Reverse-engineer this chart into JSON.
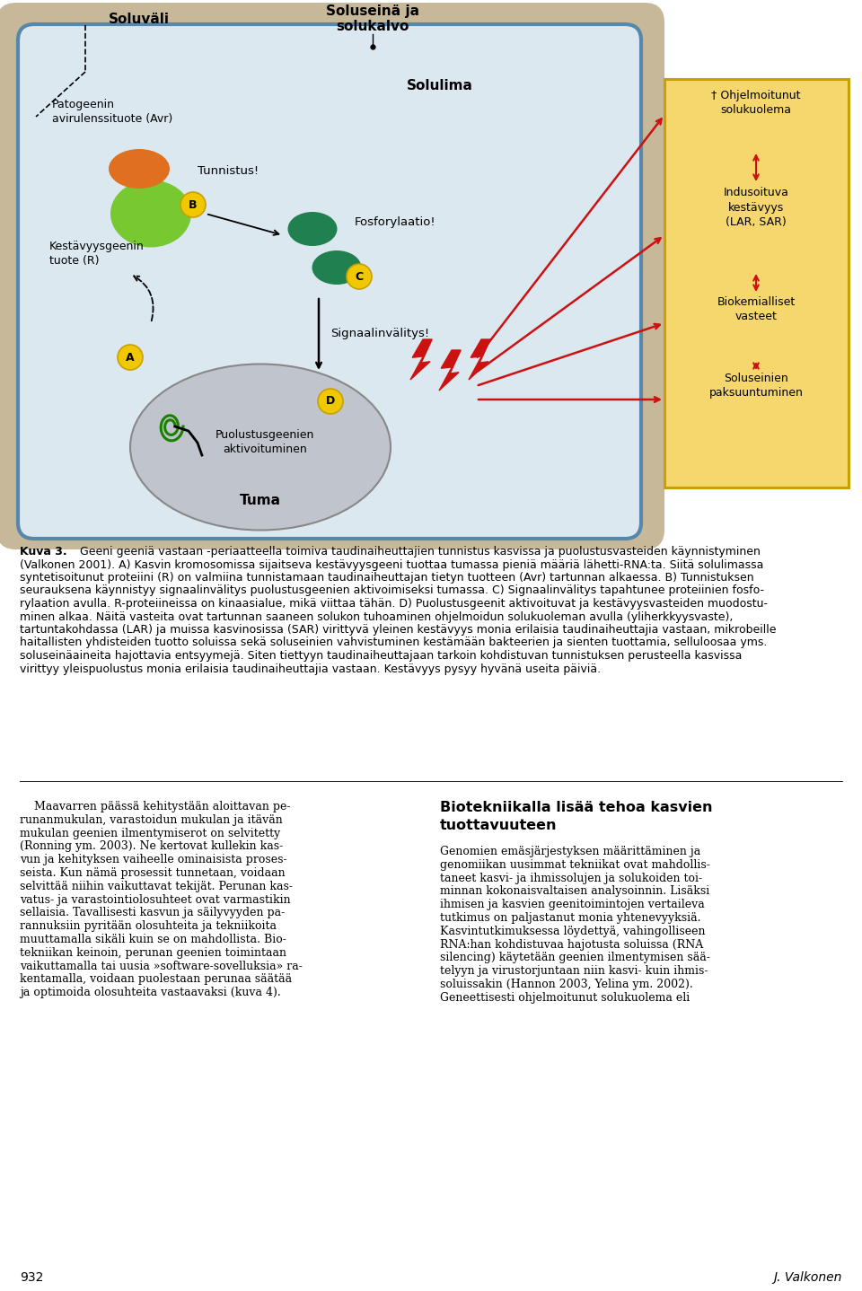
{
  "bg_color": "#ffffff",
  "cell_wall_color": "#c8b89a",
  "cell_membrane_color": "#5588aa",
  "cell_interior_color": "#dce8f0",
  "nucleus_color": "#c0c4cc",
  "nucleus_edge_color": "#888888",
  "yellow_box_color": "#f5d76e",
  "yellow_box_border": "#c8a000",
  "orange_color": "#e07020",
  "green_large_color": "#78c832",
  "green_small_color": "#208050",
  "yellow_circle_color": "#f0c800",
  "yellow_circle_edge": "#c8a000",
  "red_color": "#cc1111",
  "label_A": "A",
  "label_B": "B",
  "label_C": "C",
  "label_D": "D",
  "text_soluväli": "Soluväli",
  "text_soluseinä": "Soluseinä ja\nsolukalvo",
  "text_patogeenin": "Patogeenin\navirulenssituote (Avr)",
  "text_tunnistus": "Tunnistus!",
  "text_kestävyysgeenin": "Kestävyysgeenin\ntuote (R)",
  "text_solulima": "Solulima",
  "text_fosforylaatio": "Fosforylaatio!",
  "text_signaalinvälitys": "Signaalinvälitys!",
  "text_puolustusgeenien": "Puolustusgeenien\naktivoituminen",
  "text_tuma": "Tuma",
  "text_ohjelmoitunut": "† Ohjelmoitunut\nsolukuolema",
  "text_indusoituva": "Indusoituva\nkestävyys\n(LAR, SAR)",
  "text_biokemialliset": "Biokemialliset\nvasteet",
  "text_soluseinien": "Soluseinien\npaksuuntuminen",
  "caption_bold": "Kuva 3.",
  "caption_text": " Geeni geeniä vastaan -periaatteella toimiva taudinaiheuttajien tunnistus kasvissa ja puolustusvasteiden käynnistyminen\n(Valkonen 2001). A) Kasvin kromosomissa sijaitseva kestävyysgeeni tuottaa tumassa pieniä määriä lähetti-RNA:ta. Siitä solulimassa\nsyntetisoitunut proteiini (R) on valmiina tunnistamaan taudinaiheuttajan tietyn tuotteen (Avr) tartunnan alkaessa. B) Tunnistuksen\nseurauksena käynnistyy signaalinvälitys puolustusgeenien aktivoimiseksi tumassa. C) Signaalinvälitys tapahtunee proteiinien fosfo-\nrylaation avulla. R-proteiineissa on kinaasialue, mikä viittaa tähän. D) Puolustusgeenit aktivoituvat ja kestävyysvasteiden muodostu-\nminen alkaa. Näitä vasteita ovat tartunnan saaneen solukon tuhoaminen ohjelmoidun solukuoleman avulla (yliherkkyysvaste),\ntartuntakohdassa (LAR) ja muissa kasvinosissa (SAR) virittyvä yleinen kestävyys monia erilaisia taudinaiheuttajia vastaan, mikrobeille\nhaitallisten yhdisteiden tuotto soluissa sekä soluseinien vahvistuminen kestämään bakteerien ja sienten tuottamia, selluloosaa yms.\nsoluseinäaineita hajottavia entsyymejä. Siten tiettyyn taudinaiheuttajaan tarkoin kohdistuvan tunnistuksen perusteella kasvissa\nvirittyy yleispuolustus monia erilaisia taudinaiheuttajia vastaan. Kestävyys pysyy hyvänä useita päiviä.",
  "left_col_text": "    Maavarren päässä kehitystään aloittavan pe-\nrunanmukulan, varastoidun mukulan ja itävän\nmukulan geenien ilmentymiserot on selvitetty\n(Ronning ym. 2003). Ne kertovat kullekin kas-\nvun ja kehityksen vaiheelle ominaisista proses-\nseista. Kun nämä prosessit tunnetaan, voidaan\nselvittää niihin vaikuttavat tekijät. Perunan kas-\nvatus- ja varastointiolosuhteet ovat varmastikin\nsellaisia. Tavallisesti kasvun ja säilyvyyden pa-\nrannuksiin pyritään olosuhteita ja tekniikoita\nmuuttamalla sikäli kuin se on mahdollista. Bio-\ntekniikan keinoin, perunan geenien toimintaan\nvaikuttamalla tai uusia »software-sovelluksia» ra-\nkentamalla, voidaan puolestaan perunaa säätää\nja optimoida olosuhteita vastaavaksi (kuva 4).",
  "right_col_title": "Biotekniikalla lisää tehoa kasvien\ntuottavuuteen",
  "right_col_text": "    Genomien emäsjärjestyksen määrittäminen ja\ngenomiikan uusimmat tekniikat ovat mahdollis-\ntaneet kasvi- ja ihmissolujen ja solukoiden toi-\nminnan kokonaisvaltaisen analysoinnin. Lisäksi\nihmisen ja kasvien geenitoimintojen vertaileva\ntutkimus on paljastanut monia yhtenevyyksiä.\nKasvintutkimuksessa löydettyä, vahingolliseen\nRNA:han kohdistuvaa hajotusta soluissa (RNA\nsilencing) käytetään geenien ilmentymisen sää-\ntelyyn ja virustorjuntaan niin kasvi- kuin ihmis-\nsoluissakin (Hannon 2003, Yelina ym. 2002).\nGeneettisesti ohjelmoitunut solukuolema eli",
  "page_number": "932",
  "page_author": "J. Valkonen"
}
